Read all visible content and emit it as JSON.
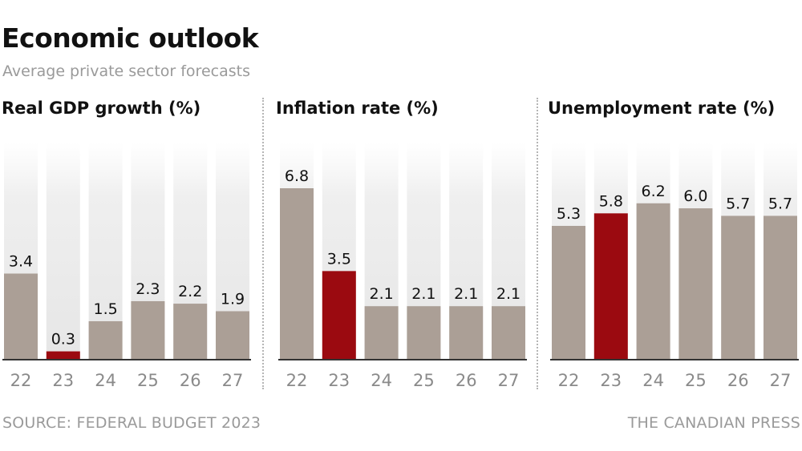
{
  "header": {
    "title": "Economic outlook",
    "subtitle": "Average private sector forecasts"
  },
  "footer": {
    "source": "SOURCE: FEDERAL BUDGET 2023",
    "credit": "THE CANADIAN PRESS"
  },
  "colors": {
    "bar": "#ab9f96",
    "highlight": "#9b0a10",
    "axis": "#333333",
    "tick_text": "#8a8a8a"
  },
  "chart_data": [
    {
      "type": "bar",
      "title": "Real GDP growth (%)",
      "categories": [
        "22",
        "23",
        "24",
        "25",
        "26",
        "27"
      ],
      "values": [
        3.4,
        0.3,
        1.5,
        2.3,
        2.2,
        1.9
      ],
      "value_labels": [
        "3.4",
        "0.3",
        "1.5",
        "2.3",
        "2.2",
        "1.9"
      ],
      "highlight_category": "23",
      "ylim": [
        0,
        7
      ],
      "grid": false
    },
    {
      "type": "bar",
      "title": "Inflation rate (%)",
      "categories": [
        "22",
        "23",
        "24",
        "25",
        "26",
        "27"
      ],
      "values": [
        6.8,
        3.5,
        2.1,
        2.1,
        2.1,
        2.1
      ],
      "value_labels": [
        "6.8",
        "3.5",
        "2.1",
        "2.1",
        "2.1",
        "2.1"
      ],
      "highlight_category": "23",
      "ylim": [
        0,
        7
      ],
      "grid": false
    },
    {
      "type": "bar",
      "title": "Unemployment rate (%)",
      "categories": [
        "22",
        "23",
        "24",
        "25",
        "26",
        "27"
      ],
      "values": [
        5.3,
        5.8,
        6.2,
        6.0,
        5.7,
        5.7
      ],
      "value_labels": [
        "5.3",
        "5.8",
        "6.2",
        "6.0",
        "5.7",
        "5.7"
      ],
      "highlight_category": "23",
      "ylim": [
        0,
        7
      ],
      "grid": false
    }
  ]
}
